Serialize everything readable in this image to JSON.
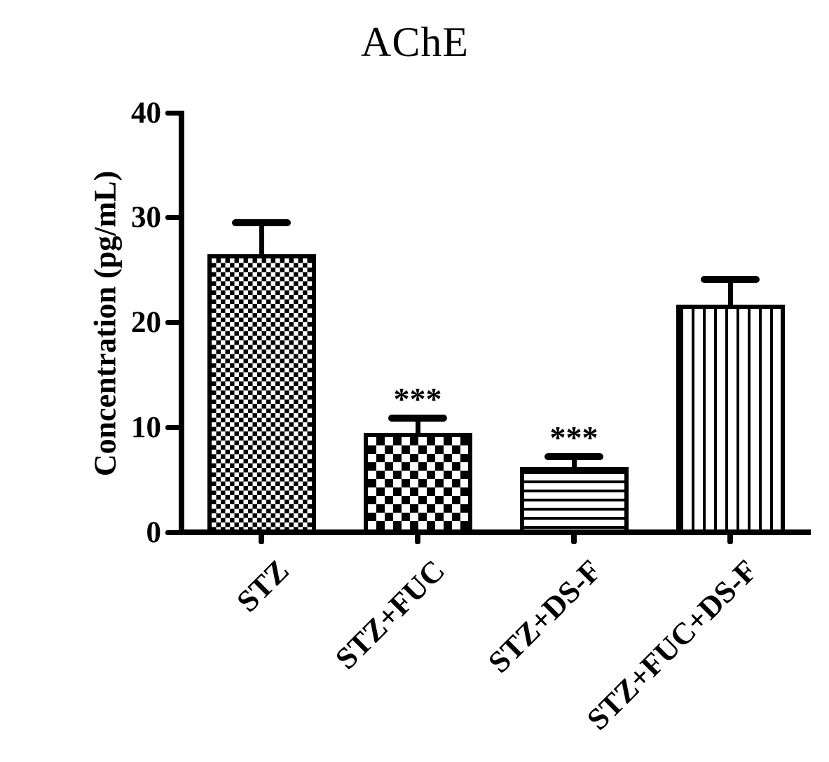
{
  "chart_data": {
    "type": "bar",
    "title": "AChE",
    "xlabel": "",
    "ylabel": "Concentration (pg/mL)",
    "categories": [
      "STZ",
      "STZ+FUC",
      "STZ+DS-F",
      "STZ+FUC+DS-F"
    ],
    "values": [
      26.5,
      9.5,
      6.2,
      21.7
    ],
    "errors_plus": [
      3.0,
      1.4,
      1.0,
      2.4
    ],
    "significance_labels": [
      "",
      "***",
      "***",
      ""
    ],
    "ylim": [
      0,
      40
    ],
    "yticks": [
      0,
      10,
      20,
      30,
      40
    ],
    "bar_patterns": [
      "fine-checkerboard",
      "coarse-checkerboard",
      "horizontal-stripes",
      "vertical-stripes"
    ],
    "bar_fill_style": "black pattern on white",
    "error_bar_direction": "upper-only",
    "grid": false,
    "legend": "none"
  },
  "colors": {
    "ink": "#000000",
    "background": "#ffffff"
  }
}
